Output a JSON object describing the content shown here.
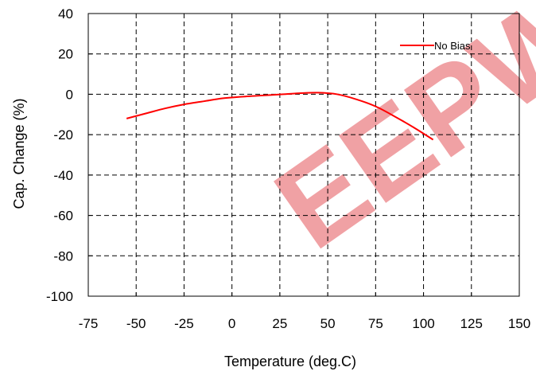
{
  "chart_data": {
    "type": "line",
    "title": "",
    "xlabel": "Temperature (deg.C)",
    "ylabel": "Cap. Change (%)",
    "xlim": [
      -75,
      150
    ],
    "ylim": [
      -100,
      40
    ],
    "x_ticks": [
      -75,
      -50,
      -25,
      0,
      25,
      50,
      75,
      100,
      125,
      150
    ],
    "y_ticks": [
      40,
      20,
      0,
      -20,
      -40,
      -60,
      -80,
      -100
    ],
    "grid": true,
    "grid_style": "dashed",
    "legend_position": "top-right",
    "series": [
      {
        "name": "No Bias",
        "color": "#ff0000",
        "x": [
          -55,
          -45,
          -35,
          -25,
          -15,
          -5,
          5,
          15,
          25,
          35,
          45,
          55,
          65,
          75,
          85,
          95,
          105
        ],
        "values": [
          -12,
          -9.5,
          -7,
          -5,
          -3.5,
          -2,
          -1.2,
          -0.6,
          -0.1,
          0.5,
          0.8,
          0,
          -2.5,
          -6,
          -11,
          -16.5,
          -22.5
        ]
      }
    ]
  },
  "watermark": {
    "text": "EEPW",
    "color": "#e8696e"
  }
}
